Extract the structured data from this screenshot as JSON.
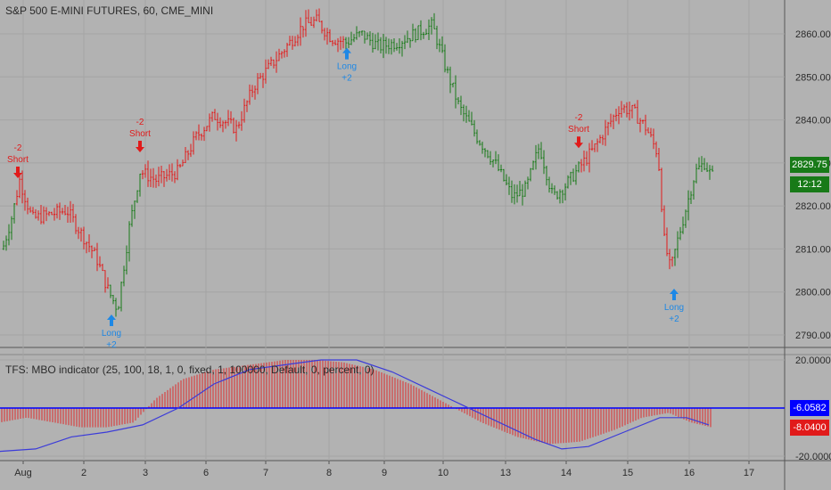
{
  "main_title": "S&P 500 E-MINI FUTURES, 60, CME_MINI",
  "indicator_title": "TFS: MBO indicator (25, 100, 18, 1, 0, fixed, 1, 100000, Default, 0, percent, 0)",
  "colors": {
    "bg": "#b2b2b2",
    "grid": "#a4a4a4",
    "up": "#187a18",
    "down": "#e11a1a",
    "signal_long": "#1e88e5",
    "signal_short": "#e11a1a",
    "line": "#3b3bd9",
    "zero_line": "#0000ff",
    "price_label": "#187a18",
    "neg_label": "#0000ff",
    "neg_label2": "#e11a1a"
  },
  "chart_data": {
    "type": "candlestick",
    "x_ticks": [
      "Aug",
      "2",
      "3",
      "6",
      "7",
      "8",
      "9",
      "10",
      "13",
      "14",
      "15",
      "16",
      "17"
    ],
    "price_axis": {
      "ticks": [
        2790,
        2800,
        2810,
        2820,
        2830,
        2840,
        2850,
        2860
      ],
      "range": [
        2785,
        2866
      ]
    },
    "price_last": "2829.75",
    "countdown": "12:12",
    "signals": [
      {
        "type": "short",
        "label": "Short",
        "qty": "-2",
        "price": 2825
      },
      {
        "type": "short",
        "label": "Short",
        "qty": "-2",
        "price": 2831
      },
      {
        "type": "long",
        "label": "Long",
        "qty": "+2",
        "price": 2796
      },
      {
        "type": "long",
        "label": "Long",
        "qty": "+2",
        "price": 2858
      },
      {
        "type": "short",
        "label": "Short",
        "qty": "-2",
        "price": 2832
      },
      {
        "type": "long",
        "label": "Long",
        "qty": "+2",
        "price": 2802
      }
    ],
    "indicator_axis": {
      "ticks": [
        "20.0000",
        "-20.0000"
      ],
      "range": [
        -20,
        20
      ]
    },
    "indicator_values": [
      "-6.0582",
      "-8.0400"
    ]
  }
}
